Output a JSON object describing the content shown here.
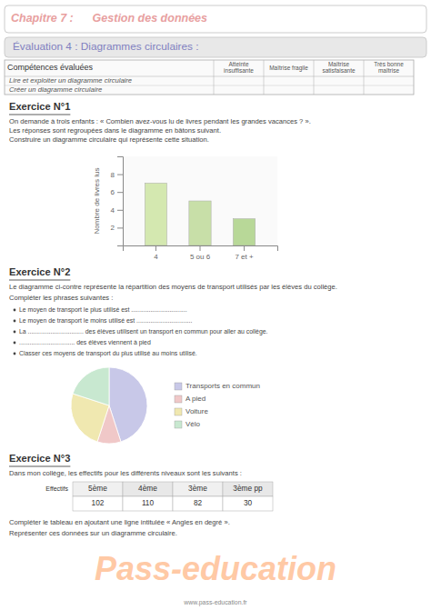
{
  "page": {
    "title_chapter": "Chapitre 7 :      Gestion des données",
    "title_eval": "Évaluation 4 : Diagrammes circulaires :",
    "table_headers": [
      "Compétences évaluées",
      "Atteinte insuffisante",
      "Maîtrise fragile",
      "Maîtrise satisfaisante",
      "Très bonne maîtrise"
    ],
    "table_rows": [
      "Lire et exploiter un diagramme circulaire",
      "Créer un diagramme circulaire"
    ],
    "ex1_title": "Exercice N°1",
    "ex1_text1": "On demande à trois enfants : « Combien avez-vous lu de livres pendant les grandes vacances ? ».",
    "ex1_text2": "Les réponses sont regroupées dans le diagramme en bâtons suivant.",
    "ex1_text3": "Construire un diagramme circulaire qui représente cette situation.",
    "ex2_title": "Exercice N°2",
    "ex2_text1": "Le diagramme ci-contre représente la répartition des moyens de transport utilisés par les élèves du collège.",
    "ex2_text2": "Compléter les phrases suivantes :",
    "ex2_bullets": [
      "Le moyen de transport le plus utilisé est ................................",
      "Le moyen de transport le moins utilisé est ................................",
      "La ................................ des élèves utilisent un transport en commun pour aller au collège.",
      "................................ des élèves viennent à pied",
      "Classer ces moyens de transport du plus utilisé au moins utilisé."
    ],
    "ex3_title": "Exercice N°3",
    "ex3_text1": "Dans mon collège, les effectifs pour les différents niveaux sont les suivants :",
    "ex3_row_label": "Effectifs",
    "ex3_table_headers": [
      "5ème",
      "4ème",
      "3ème",
      "3ème pp"
    ],
    "ex3_table_values": [
      "102",
      "110",
      "82",
      "30"
    ],
    "ex3_text2": "Compléter le tableau en ajoutant une ligne intitulée « Angles en degré ».",
    "ex3_text3": "Représenter ces données sur un diagramme circulaire.",
    "watermark_text": "Pass-education",
    "website": "www.pass-education.fr",
    "bg_color": "#ffffff",
    "chapter_color": "#e8a0a0",
    "eval_bg": "#e8e8e8",
    "eval_color": "#8080c0"
  },
  "chart_data": [
    {
      "type": "bar",
      "ylabel": "Nombre de livres lus",
      "categories": [
        "4",
        "5 ou 6",
        "7 et +"
      ],
      "values": [
        7,
        5,
        3
      ],
      "colors": [
        "#d4e8b0",
        "#c8dfa8",
        "#b8d898"
      ],
      "ylim": [
        0,
        10
      ],
      "yticks": [
        2,
        4,
        6,
        8
      ],
      "grid": false
    },
    {
      "type": "pie",
      "categories": [
        "Transports en commun",
        "A pied",
        "Voiture",
        "Vélo"
      ],
      "values": [
        45,
        10,
        25,
        20
      ],
      "colors": [
        "#c8c8e8",
        "#f0c8c8",
        "#f0e8b0",
        "#c8e8d0"
      ],
      "legend": "right"
    }
  ]
}
